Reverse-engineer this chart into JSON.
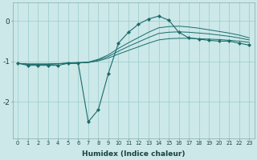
{
  "xlabel": "Humidex (Indice chaleur)",
  "bg_color": "#cce8e8",
  "grid_color": "#99cccc",
  "line_color": "#1a6b6b",
  "xlim": [
    -0.5,
    23.5
  ],
  "ylim": [
    -2.9,
    0.45
  ],
  "yticks": [
    0,
    -1,
    -2
  ],
  "xticks": [
    0,
    1,
    2,
    3,
    4,
    5,
    6,
    7,
    8,
    9,
    10,
    11,
    12,
    13,
    14,
    15,
    16,
    17,
    18,
    19,
    20,
    21,
    22,
    23
  ],
  "series": {
    "curve1_x": [
      0,
      1,
      2,
      3,
      4,
      5,
      6,
      7,
      8,
      9,
      10,
      11,
      12,
      13,
      14,
      15,
      16,
      17,
      18,
      19,
      20,
      21,
      22,
      23
    ],
    "curve1_y": [
      -1.05,
      -1.1,
      -1.1,
      -1.1,
      -1.1,
      -1.05,
      -1.05,
      -2.5,
      -2.2,
      -1.3,
      -0.55,
      -0.28,
      -0.08,
      0.05,
      0.12,
      0.02,
      -0.28,
      -0.42,
      -0.45,
      -0.48,
      -0.5,
      -0.5,
      -0.55,
      -0.6
    ],
    "curve2_x": [
      0,
      1,
      2,
      3,
      4,
      5,
      6,
      7,
      8,
      9,
      10,
      11,
      12,
      13,
      14,
      15,
      16,
      17,
      18,
      19,
      20,
      21,
      22,
      23
    ],
    "curve2_y": [
      -1.05,
      -1.07,
      -1.07,
      -1.07,
      -1.06,
      -1.05,
      -1.04,
      -1.03,
      -0.99,
      -0.92,
      -0.82,
      -0.73,
      -0.64,
      -0.55,
      -0.47,
      -0.44,
      -0.43,
      -0.43,
      -0.44,
      -0.45,
      -0.46,
      -0.48,
      -0.5,
      -0.53
    ],
    "curve3_x": [
      0,
      1,
      2,
      3,
      4,
      5,
      6,
      7,
      8,
      9,
      10,
      11,
      12,
      13,
      14,
      15,
      16,
      17,
      18,
      19,
      20,
      21,
      22,
      23
    ],
    "curve3_y": [
      -1.05,
      -1.07,
      -1.07,
      -1.07,
      -1.06,
      -1.05,
      -1.04,
      -1.03,
      -0.97,
      -0.88,
      -0.75,
      -0.63,
      -0.52,
      -0.41,
      -0.31,
      -0.28,
      -0.27,
      -0.28,
      -0.3,
      -0.32,
      -0.35,
      -0.38,
      -0.42,
      -0.47
    ],
    "curve4_x": [
      0,
      1,
      2,
      3,
      4,
      5,
      6,
      7,
      8,
      9,
      10,
      11,
      12,
      13,
      14,
      15,
      16,
      17,
      18,
      19,
      20,
      21,
      22,
      23
    ],
    "curve4_y": [
      -1.05,
      -1.07,
      -1.07,
      -1.07,
      -1.06,
      -1.04,
      -1.03,
      -1.02,
      -0.95,
      -0.84,
      -0.68,
      -0.54,
      -0.41,
      -0.28,
      -0.17,
      -0.14,
      -0.13,
      -0.15,
      -0.18,
      -0.22,
      -0.26,
      -0.3,
      -0.35,
      -0.42
    ]
  }
}
